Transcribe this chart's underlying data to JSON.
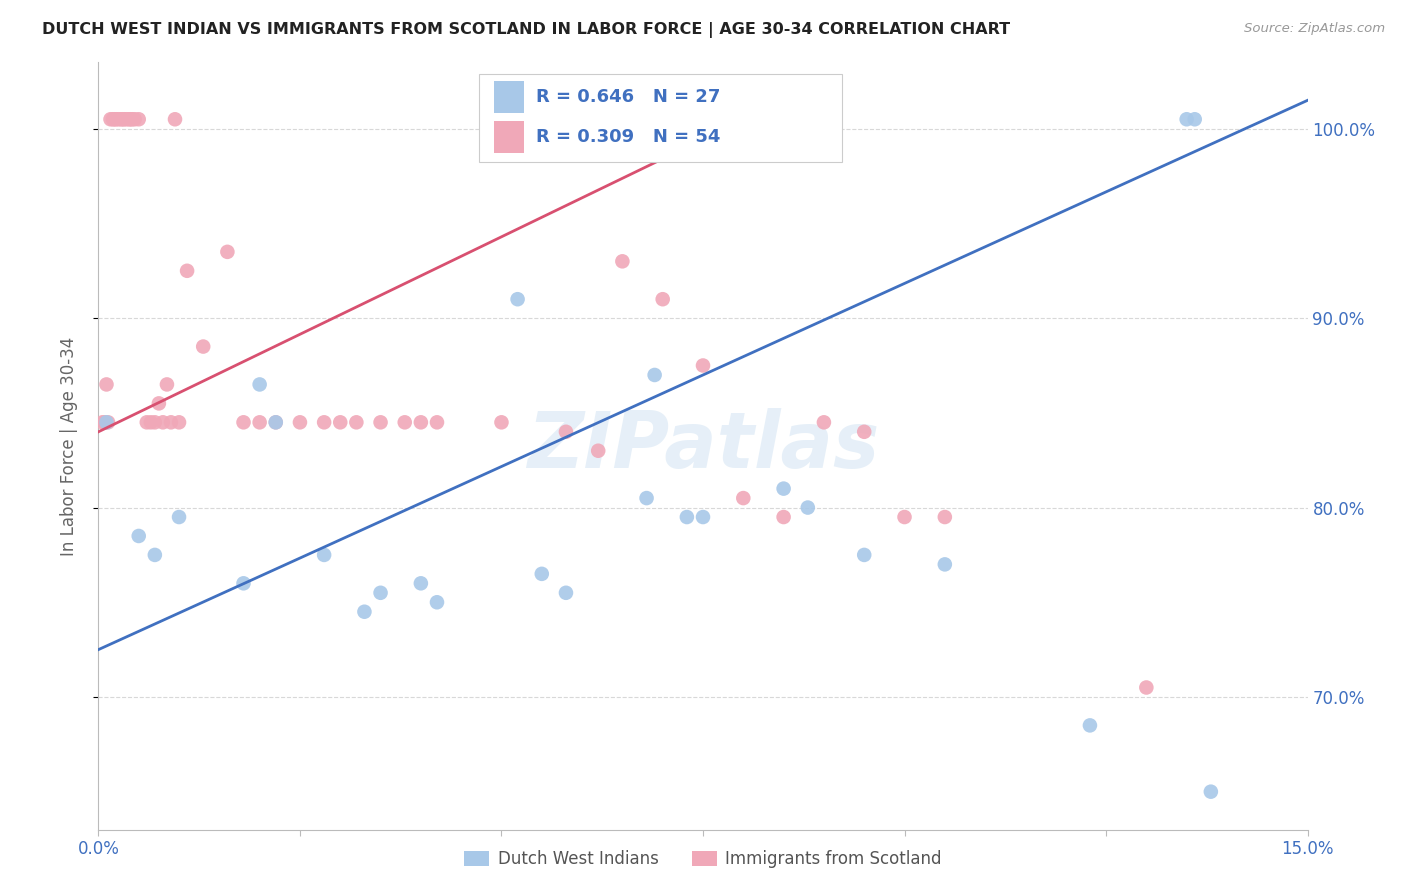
{
  "title": "DUTCH WEST INDIAN VS IMMIGRANTS FROM SCOTLAND IN LABOR FORCE | AGE 30-34 CORRELATION CHART",
  "source_text": "Source: ZipAtlas.com",
  "ylabel": "In Labor Force | Age 30-34",
  "xlim": [
    0.0,
    15.0
  ],
  "ylim": [
    63.0,
    103.5
  ],
  "x_ticks": [
    0.0,
    2.5,
    5.0,
    7.5,
    10.0,
    12.5,
    15.0
  ],
  "x_tick_labels": [
    "0.0%",
    "",
    "",
    "",
    "",
    "",
    "15.0%"
  ],
  "y_ticks": [
    70.0,
    80.0,
    90.0,
    100.0
  ],
  "y_tick_labels": [
    "70.0%",
    "80.0%",
    "90.0%",
    "100.0%"
  ],
  "legend_r_blue": "R = 0.646",
  "legend_n_blue": "N = 27",
  "legend_r_pink": "R = 0.309",
  "legend_n_pink": "N = 54",
  "blue_color": "#a8c8e8",
  "pink_color": "#f0a8b8",
  "blue_line_color": "#4070c0",
  "pink_line_color": "#d85070",
  "legend_text_color": "#4070c0",
  "grid_color": "#d8d8d8",
  "blue_points_x": [
    0.1,
    0.5,
    1.0,
    0.7,
    1.8,
    2.2,
    2.0,
    2.8,
    3.3,
    3.5,
    4.0,
    4.2,
    5.5,
    5.8,
    5.2,
    6.8,
    6.9,
    7.5,
    7.3,
    8.5,
    8.8,
    9.5,
    10.5,
    12.3,
    13.5,
    13.6,
    13.8
  ],
  "blue_points_y": [
    84.5,
    78.5,
    79.5,
    77.5,
    76.0,
    84.5,
    86.5,
    77.5,
    74.5,
    75.5,
    76.0,
    75.0,
    76.5,
    75.5,
    91.0,
    80.5,
    87.0,
    79.5,
    79.5,
    81.0,
    80.0,
    77.5,
    77.0,
    68.5,
    100.5,
    100.5,
    65.0
  ],
  "pink_points_x": [
    0.05,
    0.08,
    0.1,
    0.12,
    0.15,
    0.18,
    0.2,
    0.22,
    0.25,
    0.28,
    0.3,
    0.32,
    0.35,
    0.38,
    0.4,
    0.42,
    0.45,
    0.5,
    0.6,
    0.65,
    0.7,
    0.75,
    0.8,
    0.85,
    0.9,
    0.95,
    1.0,
    1.1,
    1.3,
    1.6,
    1.8,
    2.0,
    2.2,
    2.5,
    2.8,
    3.0,
    3.2,
    3.5,
    3.8,
    4.0,
    4.2,
    5.0,
    5.8,
    6.2,
    6.5,
    7.0,
    7.5,
    8.0,
    8.5,
    9.0,
    9.5,
    10.0,
    10.5,
    13.0
  ],
  "pink_points_y": [
    84.5,
    84.5,
    86.5,
    84.5,
    100.5,
    100.5,
    100.5,
    100.5,
    100.5,
    100.5,
    100.5,
    100.5,
    100.5,
    100.5,
    100.5,
    100.5,
    100.5,
    100.5,
    84.5,
    84.5,
    84.5,
    85.5,
    84.5,
    86.5,
    84.5,
    100.5,
    84.5,
    92.5,
    88.5,
    93.5,
    84.5,
    84.5,
    84.5,
    84.5,
    84.5,
    84.5,
    84.5,
    84.5,
    84.5,
    84.5,
    84.5,
    84.5,
    84.0,
    83.0,
    93.0,
    91.0,
    87.5,
    80.5,
    79.5,
    84.5,
    84.0,
    79.5,
    79.5,
    70.5
  ],
  "blue_line_x": [
    0.0,
    15.0
  ],
  "blue_line_y": [
    72.5,
    101.5
  ],
  "pink_line_x": [
    0.0,
    8.5
  ],
  "pink_line_y": [
    84.0,
    101.5
  ],
  "watermark": "ZIPatlas",
  "legend_label_blue": "Dutch West Indians",
  "legend_label_pink": "Immigrants from Scotland"
}
